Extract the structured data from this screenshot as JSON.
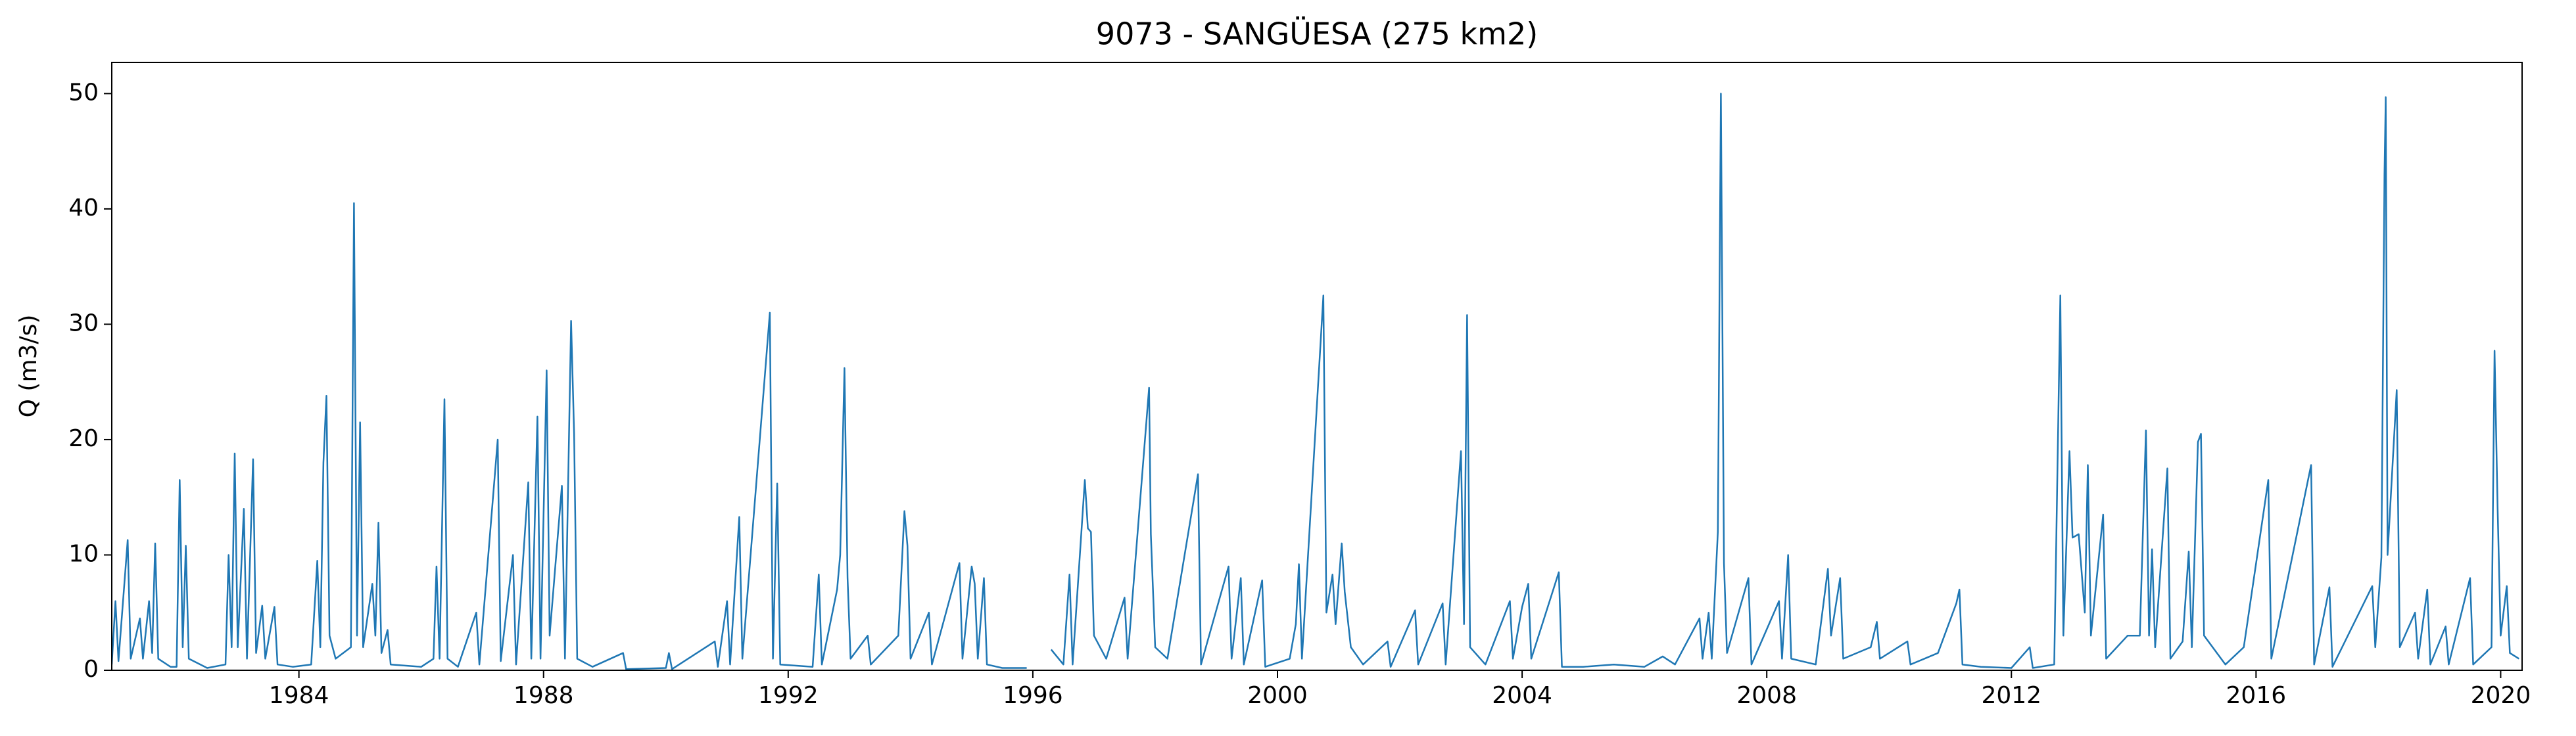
{
  "chart_data": {
    "type": "line",
    "title": "9073 - SANGÜESA (275 km2)",
    "ylabel": "Q (m3/s)",
    "color": "#1f77b4",
    "xlim": [
      1980.94,
      2020.35
    ],
    "xticks": [
      1984,
      1988,
      1992,
      1996,
      2000,
      2004,
      2008,
      2012,
      2016,
      2020
    ],
    "ylim": [
      0,
      52.7
    ],
    "yticks": [
      0,
      10,
      20,
      30,
      40,
      50
    ],
    "grid": false,
    "x": [
      1980.94,
      1981.0,
      1981.05,
      1981.2,
      1981.25,
      1981.4,
      1981.45,
      1981.55,
      1981.6,
      1981.65,
      1981.7,
      1981.9,
      1982.0,
      1982.05,
      1982.1,
      1982.15,
      1982.2,
      1982.5,
      1982.8,
      1982.85,
      1982.9,
      1982.95,
      1983.0,
      1983.1,
      1983.15,
      1983.25,
      1983.3,
      1983.4,
      1983.45,
      1983.6,
      1983.65,
      1983.9,
      1984.2,
      1984.3,
      1984.35,
      1984.4,
      1984.45,
      1984.5,
      1984.6,
      1984.85,
      1984.9,
      1984.95,
      1985.0,
      1985.05,
      1985.2,
      1985.25,
      1985.3,
      1985.35,
      1985.45,
      1985.5,
      1986.0,
      1986.2,
      1986.25,
      1986.3,
      1986.38,
      1986.43,
      1986.6,
      1986.9,
      1986.95,
      1987.25,
      1987.3,
      1987.5,
      1987.55,
      1987.75,
      1987.8,
      1987.9,
      1987.95,
      1988.05,
      1988.1,
      1988.3,
      1988.35,
      1988.45,
      1988.5,
      1988.55,
      1988.8,
      1989.3,
      1989.35,
      1990.0,
      1990.05,
      1990.1,
      1990.8,
      1990.85,
      1991.0,
      1991.05,
      1991.2,
      1991.25,
      1991.7,
      1991.75,
      1991.82,
      1991.87,
      1992.4,
      1992.5,
      1992.55,
      1992.8,
      1992.85,
      1992.92,
      1992.97,
      1993.02,
      1993.3,
      1993.35,
      1993.8,
      1993.9,
      1993.95,
      1994.0,
      1994.3,
      1994.35,
      1994.8,
      1994.85,
      1995.0,
      1995.05,
      1995.1,
      1995.2,
      1995.25,
      1995.5,
      1995.9,
      1996.1,
      1996.3,
      1996.5,
      1996.6,
      1996.65,
      1996.85,
      1996.9,
      1996.95,
      1997.0,
      1997.2,
      1997.5,
      1997.55,
      1997.9,
      1997.93,
      1998.0,
      1998.2,
      1998.7,
      1998.75,
      1999.2,
      1999.25,
      1999.4,
      1999.45,
      1999.75,
      1999.8,
      2000.2,
      2000.3,
      2000.35,
      2000.4,
      2000.75,
      2000.8,
      2000.9,
      2000.95,
      2001.05,
      2001.1,
      2001.2,
      2001.4,
      2001.8,
      2001.85,
      2002.25,
      2002.3,
      2002.7,
      2002.75,
      2003.0,
      2003.05,
      2003.1,
      2003.15,
      2003.4,
      2003.8,
      2003.85,
      2004.0,
      2004.1,
      2004.15,
      2004.6,
      2004.65,
      2005.0,
      2005.5,
      2006.0,
      2006.3,
      2006.5,
      2006.9,
      2006.95,
      2007.05,
      2007.1,
      2007.2,
      2007.25,
      2007.3,
      2007.35,
      2007.7,
      2007.75,
      2008.2,
      2008.25,
      2008.35,
      2008.4,
      2008.8,
      2009.0,
      2009.05,
      2009.2,
      2009.25,
      2009.7,
      2009.8,
      2009.85,
      2010.3,
      2010.35,
      2010.8,
      2011.1,
      2011.15,
      2011.2,
      2011.5,
      2012.0,
      2012.3,
      2012.35,
      2012.7,
      2012.8,
      2012.85,
      2012.95,
      2013.0,
      2013.1,
      2013.2,
      2013.25,
      2013.3,
      2013.5,
      2013.55,
      2013.9,
      2014.1,
      2014.2,
      2014.25,
      2014.3,
      2014.35,
      2014.55,
      2014.6,
      2014.8,
      2014.9,
      2014.95,
      2015.05,
      2015.1,
      2015.15,
      2015.5,
      2015.8,
      2016.2,
      2016.25,
      2016.9,
      2016.95,
      2017.2,
      2017.25,
      2017.9,
      2017.95,
      2018.05,
      2018.1,
      2018.12,
      2018.15,
      2018.3,
      2018.35,
      2018.6,
      2018.65,
      2018.8,
      2018.85,
      2019.1,
      2019.15,
      2019.5,
      2019.55,
      2019.85,
      2019.9,
      2019.95,
      2020.0,
      2020.1,
      2020.15,
      2020.3
    ],
    "values": [
      0.5,
      6,
      0.8,
      11.3,
      1,
      4.5,
      1,
      6,
      1.5,
      11,
      1,
      0.3,
      0.3,
      16.5,
      2,
      10.8,
      1,
      0.2,
      0.5,
      10,
      2,
      18.8,
      2,
      14,
      1,
      18.3,
      1.5,
      5.6,
      1,
      5.5,
      0.5,
      0.3,
      0.5,
      9.5,
      2,
      18,
      23.8,
      3,
      1,
      2,
      40.5,
      3,
      21.5,
      2,
      7.5,
      3,
      12.8,
      1.5,
      3.5,
      0.5,
      0.3,
      1,
      9,
      1,
      23.5,
      1,
      0.3,
      5,
      0.5,
      20,
      0.8,
      10,
      0.5,
      16.3,
      1,
      22,
      1,
      26,
      3,
      16,
      1,
      30.3,
      20.5,
      1,
      0.3,
      1.5,
      0.1,
      0.2,
      1.5,
      0.1,
      2.5,
      0.3,
      6,
      0.5,
      13.3,
      1,
      31,
      1,
      16.2,
      0.5,
      0.3,
      8.3,
      0.5,
      7,
      10,
      26.2,
      8,
      1,
      3,
      0.5,
      3,
      13.8,
      10.8,
      1,
      5,
      0.5,
      9.3,
      1,
      9,
      7.5,
      1,
      8,
      0.5,
      0.2,
      0.2,
      null,
      1.8,
      0.5,
      8.3,
      0.5,
      16.5,
      12.3,
      12,
      3,
      1,
      6.3,
      1,
      24.5,
      11.8,
      2,
      1,
      17,
      0.5,
      9,
      1,
      8,
      0.5,
      7.8,
      0.3,
      1,
      4,
      9.2,
      1,
      32.5,
      5,
      8.3,
      4,
      11,
      6.8,
      2,
      0.5,
      2.5,
      0.3,
      5.2,
      0.5,
      5.8,
      0.5,
      19,
      4,
      30.8,
      2,
      0.5,
      6,
      1,
      5.5,
      7.5,
      1,
      8.5,
      0.3,
      0.3,
      0.5,
      0.3,
      1.2,
      0.5,
      4.5,
      1,
      5,
      1,
      12,
      50,
      9.3,
      1.5,
      8,
      0.5,
      6,
      1,
      10,
      1,
      0.5,
      8.8,
      3,
      8,
      1,
      2,
      4.2,
      1,
      2.5,
      0.5,
      1.5,
      5.8,
      7,
      0.5,
      0.3,
      0.2,
      2,
      0.2,
      0.5,
      32.5,
      3,
      19,
      11.5,
      11.8,
      5,
      17.8,
      3,
      13.5,
      1,
      3,
      3,
      20.8,
      3,
      10.5,
      2,
      17.5,
      1,
      2.5,
      10.3,
      2,
      19.8,
      20.5,
      3,
      0.5,
      2,
      16.5,
      1,
      17.8,
      0.5,
      7.2,
      0.3,
      7.3,
      2,
      9.8,
      43,
      49.7,
      10,
      24.3,
      2,
      5,
      1,
      7,
      0.5,
      3.8,
      0.5,
      8,
      0.5,
      2,
      27.7,
      14,
      3,
      7.3,
      1.5,
      1
    ]
  }
}
